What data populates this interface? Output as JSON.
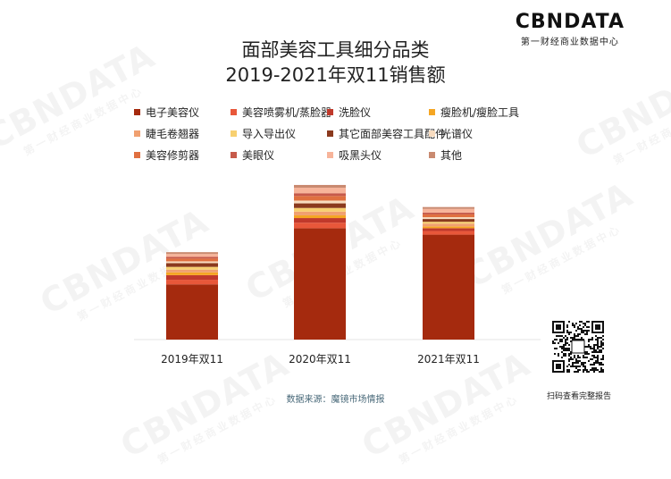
{
  "brand": {
    "logo": "CBNDATA",
    "subtitle": "第一财经商业数据中心"
  },
  "watermark": {
    "text": "CBNDATA",
    "subtitle": "第一财经商业数据中心"
  },
  "title_line1": "面部美容工具细分品类",
  "title_line2": "2019-2021年双11销售额",
  "source": "数据来源：魔镜市场情报",
  "qr_caption": "扫码查看完整报告",
  "chart_data": {
    "type": "bar",
    "stacked": true,
    "title": "面部美容工具细分品类 2019-2021年双11销售额",
    "categories": [
      "2019年双11",
      "2020年双11",
      "2021年双11"
    ],
    "y_axis_shown": false,
    "grid": false,
    "legend_position": "top",
    "series": [
      {
        "name": "电子美容仪",
        "color": "#a52a0e",
        "values": [
          60,
          121,
          114
        ]
      },
      {
        "name": "美容喷雾机/蒸脸器",
        "color": "#e8573a",
        "values": [
          5,
          6,
          4
        ]
      },
      {
        "name": "洗脸仪",
        "color": "#c0392b",
        "values": [
          5,
          5,
          3
        ]
      },
      {
        "name": "瘦脸机/瘦脸工具",
        "color": "#f5a623",
        "values": [
          3,
          3,
          2
        ]
      },
      {
        "name": "睫毛卷翘器",
        "color": "#f0a070",
        "values": [
          3,
          4,
          3
        ]
      },
      {
        "name": "导入导出仪",
        "color": "#f7d070",
        "values": [
          3,
          4,
          2
        ]
      },
      {
        "name": "其它面部美容工具配件",
        "color": "#8b3a1e",
        "values": [
          4,
          5,
          3
        ]
      },
      {
        "name": "光谱仪",
        "color": "#f8dcc0",
        "values": [
          2,
          3,
          2
        ]
      },
      {
        "name": "美容修剪器",
        "color": "#e07040",
        "values": [
          3,
          5,
          3
        ]
      },
      {
        "name": "美眼仪",
        "color": "#c65a4a",
        "values": [
          2,
          3,
          2
        ]
      },
      {
        "name": "吸黑头仪",
        "color": "#f7b49a",
        "values": [
          3,
          6,
          4
        ]
      },
      {
        "name": "其他",
        "color": "#c98a70",
        "values": [
          2,
          3,
          2
        ]
      }
    ]
  }
}
